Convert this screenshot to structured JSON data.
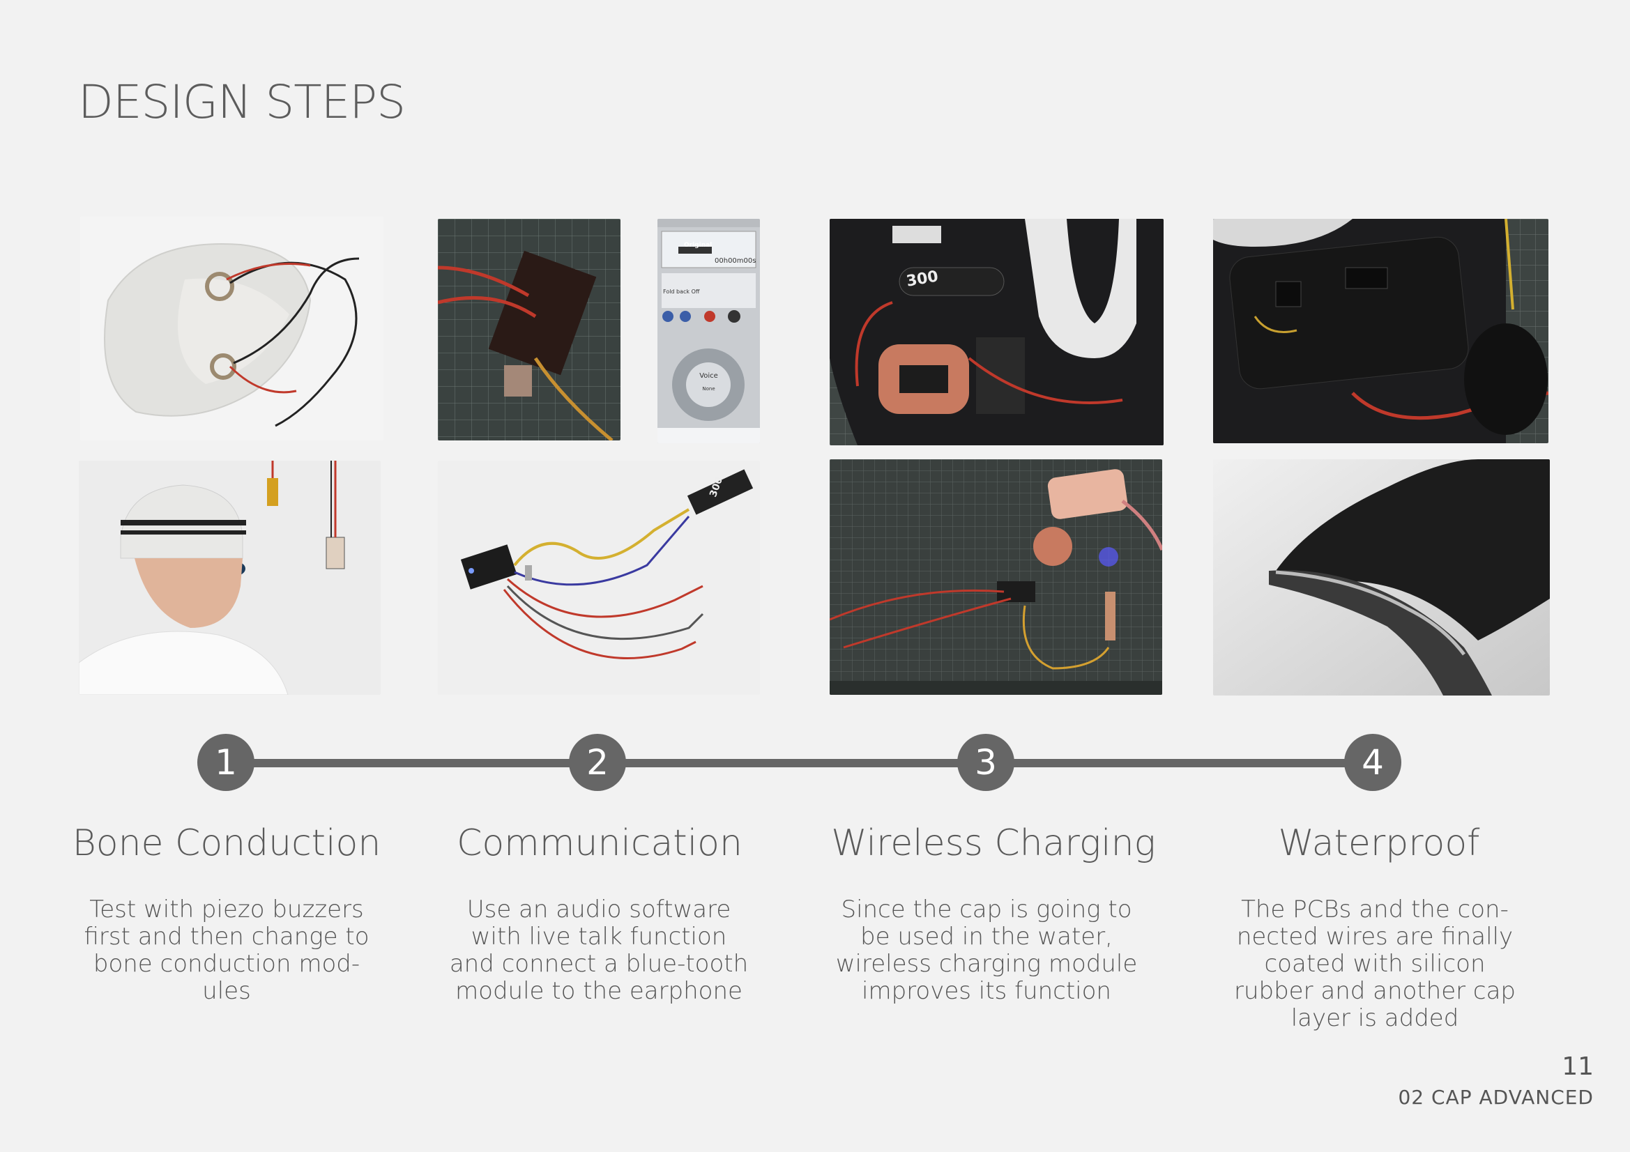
{
  "title": "DESIGN STEPS",
  "steps": [
    {
      "number": "1",
      "title": "Bone Conduction",
      "description": "Test with piezo buzzers first and then change to bone conduction mod-ules"
    },
    {
      "number": "2",
      "title": "Communication",
      "description": "Use an audio software with live talk function and connect a blue-tooth module to the earphone"
    },
    {
      "number": "3",
      "title": "Wireless Charging",
      "description": "Since the cap is going to be used in the water, wireless charging module improves its function"
    },
    {
      "number": "4",
      "title": "Waterproof",
      "description": "The PCBs and the con-nected wires are finally coated with silicon rubber and another cap layer is added"
    }
  ],
  "app_screen": {
    "mode": "Original",
    "timer": "00h00m00s",
    "fold_back": "Fold back Off",
    "dial_label": "Voice",
    "dial_sub": "None"
  },
  "board_label": "300",
  "footer": {
    "page_number": "11",
    "chapter": "02 CAP ADVANCED"
  }
}
